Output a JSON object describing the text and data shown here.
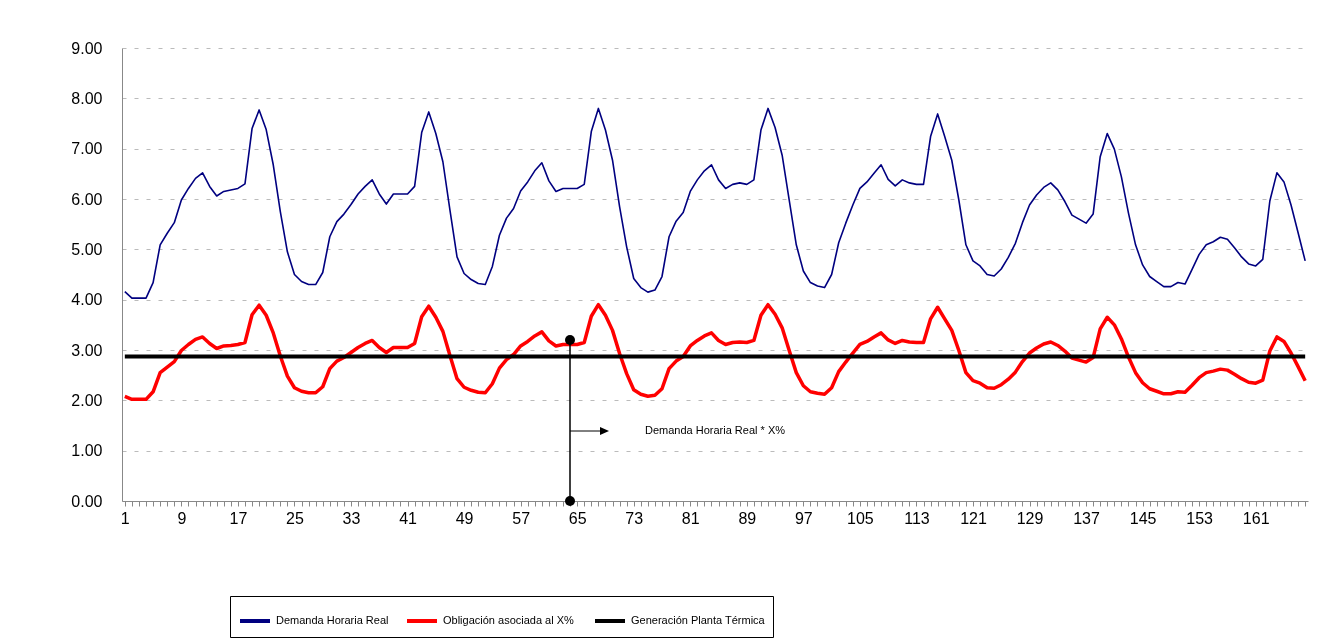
{
  "chart_data": {
    "type": "line",
    "categories": [
      "1",
      null,
      null,
      null,
      null,
      null,
      null,
      null,
      "9",
      null,
      null,
      null,
      null,
      null,
      null,
      null,
      "17",
      null,
      null,
      null,
      null,
      null,
      null,
      null,
      "25",
      null,
      null,
      null,
      null,
      null,
      null,
      null,
      "33",
      null,
      null,
      null,
      null,
      null,
      null,
      null,
      "41",
      null,
      null,
      null,
      null,
      null,
      null,
      null,
      "49",
      null,
      null,
      null,
      null,
      null,
      null,
      null,
      "57",
      null,
      null,
      null,
      null,
      null,
      null,
      null,
      "65",
      null,
      null,
      null,
      null,
      null,
      null,
      null,
      "73",
      null,
      null,
      null,
      null,
      null,
      null,
      null,
      "81",
      null,
      null,
      null,
      null,
      null,
      null,
      null,
      "89",
      null,
      null,
      null,
      null,
      null,
      null,
      null,
      "97",
      null,
      null,
      null,
      null,
      null,
      null,
      null,
      "105",
      null,
      null,
      null,
      null,
      null,
      null,
      null,
      "113",
      null,
      null,
      null,
      null,
      null,
      null,
      null,
      "121",
      null,
      null,
      null,
      null,
      null,
      null,
      null,
      "129",
      null,
      null,
      null,
      null,
      null,
      null,
      null,
      "137",
      null,
      null,
      null,
      null,
      null,
      null,
      null,
      "145",
      null,
      null,
      null,
      null,
      null,
      null,
      null,
      "153",
      null,
      null,
      null,
      null,
      null,
      null,
      null,
      "161",
      null,
      null,
      null,
      null,
      null,
      null,
      null
    ],
    "series": [
      {
        "name": "Demanda Horaria Real",
        "color": "#000080",
        "values": [
          4.16,
          4.03,
          4.03,
          4.03,
          4.34,
          5.09,
          5.32,
          5.53,
          5.98,
          6.21,
          6.41,
          6.52,
          6.25,
          6.06,
          6.15,
          6.18,
          6.21,
          6.3,
          7.4,
          7.77,
          7.38,
          6.68,
          5.75,
          4.95,
          4.5,
          4.36,
          4.3,
          4.3,
          4.54,
          5.25,
          5.55,
          5.7,
          5.89,
          6.1,
          6.25,
          6.38,
          6.1,
          5.9,
          6.1,
          6.1,
          6.1,
          6.25,
          7.32,
          7.73,
          7.3,
          6.74,
          5.78,
          4.85,
          4.52,
          4.4,
          4.32,
          4.3,
          4.66,
          5.28,
          5.62,
          5.81,
          6.16,
          6.34,
          6.56,
          6.72,
          6.36,
          6.15,
          6.21,
          6.21,
          6.21,
          6.29,
          7.34,
          7.8,
          7.37,
          6.77,
          5.85,
          5.05,
          4.42,
          4.24,
          4.15,
          4.19,
          4.46,
          5.25,
          5.56,
          5.73,
          6.15,
          6.38,
          6.56,
          6.68,
          6.38,
          6.21,
          6.29,
          6.32,
          6.29,
          6.38,
          7.37,
          7.8,
          7.42,
          6.87,
          5.98,
          5.09,
          4.57,
          4.34,
          4.27,
          4.24,
          4.5,
          5.13,
          5.52,
          5.88,
          6.21,
          6.34,
          6.51,
          6.68,
          6.39,
          6.26,
          6.38,
          6.32,
          6.29,
          6.29,
          7.24,
          7.69,
          7.24,
          6.77,
          5.98,
          5.09,
          4.77,
          4.67,
          4.5,
          4.47,
          4.61,
          4.84,
          5.12,
          5.53,
          5.88,
          6.08,
          6.23,
          6.32,
          6.18,
          5.95,
          5.68,
          5.6,
          5.52,
          5.7,
          6.84,
          7.3,
          6.99,
          6.44,
          5.72,
          5.09,
          4.69,
          4.46,
          4.36,
          4.26,
          4.26,
          4.34,
          4.31,
          4.6,
          4.9,
          5.09,
          5.15,
          5.24,
          5.2,
          5.03,
          4.85,
          4.71,
          4.67,
          4.8,
          5.96,
          6.52,
          6.34,
          5.88,
          5.33,
          4.77
        ]
      },
      {
        "name": "Obligación asociada al  X%",
        "color": "#ff0000",
        "values": [
          2.08,
          2.02,
          2.02,
          2.02,
          2.17,
          2.55,
          2.66,
          2.77,
          2.99,
          3.11,
          3.21,
          3.26,
          3.13,
          3.03,
          3.08,
          3.09,
          3.11,
          3.15,
          3.7,
          3.89,
          3.69,
          3.34,
          2.88,
          2.48,
          2.25,
          2.18,
          2.15,
          2.15,
          2.27,
          2.63,
          2.78,
          2.85,
          2.95,
          3.05,
          3.13,
          3.19,
          3.05,
          2.95,
          3.05,
          3.05,
          3.05,
          3.13,
          3.66,
          3.87,
          3.65,
          3.37,
          2.89,
          2.43,
          2.26,
          2.2,
          2.16,
          2.15,
          2.33,
          2.64,
          2.81,
          2.91,
          3.08,
          3.17,
          3.28,
          3.36,
          3.18,
          3.08,
          3.11,
          3.11,
          3.11,
          3.15,
          3.67,
          3.9,
          3.69,
          3.39,
          2.93,
          2.53,
          2.21,
          2.12,
          2.08,
          2.1,
          2.23,
          2.63,
          2.78,
          2.87,
          3.08,
          3.19,
          3.28,
          3.34,
          3.19,
          3.11,
          3.15,
          3.16,
          3.15,
          3.19,
          3.69,
          3.9,
          3.71,
          3.44,
          2.99,
          2.55,
          2.29,
          2.17,
          2.14,
          2.12,
          2.25,
          2.57,
          2.76,
          2.94,
          3.11,
          3.17,
          3.26,
          3.34,
          3.2,
          3.13,
          3.19,
          3.16,
          3.15,
          3.15,
          3.62,
          3.85,
          3.62,
          3.39,
          2.99,
          2.55,
          2.39,
          2.34,
          2.25,
          2.24,
          2.31,
          2.42,
          2.56,
          2.77,
          2.94,
          3.04,
          3.12,
          3.16,
          3.09,
          2.98,
          2.84,
          2.8,
          2.76,
          2.85,
          3.42,
          3.65,
          3.5,
          3.22,
          2.86,
          2.55,
          2.35,
          2.23,
          2.18,
          2.13,
          2.13,
          2.17,
          2.16,
          2.3,
          2.45,
          2.55,
          2.58,
          2.62,
          2.6,
          2.52,
          2.43,
          2.36,
          2.34,
          2.4,
          2.98,
          3.26,
          3.17,
          2.94,
          2.67,
          2.39
        ]
      },
      {
        "name": "Generación Planta Térmica",
        "color": "#000000",
        "values": [
          2.87,
          2.87,
          2.87,
          2.87,
          2.87,
          2.87,
          2.87,
          2.87,
          2.87,
          2.87,
          2.87,
          2.87,
          2.87,
          2.87,
          2.87,
          2.87,
          2.87,
          2.87,
          2.87,
          2.87,
          2.87,
          2.87,
          2.87,
          2.87,
          2.87,
          2.87,
          2.87,
          2.87,
          2.87,
          2.87,
          2.87,
          2.87,
          2.87,
          2.87,
          2.87,
          2.87,
          2.87,
          2.87,
          2.87,
          2.87,
          2.87,
          2.87,
          2.87,
          2.87,
          2.87,
          2.87,
          2.87,
          2.87,
          2.87,
          2.87,
          2.87,
          2.87,
          2.87,
          2.87,
          2.87,
          2.87,
          2.87,
          2.87,
          2.87,
          2.87,
          2.87,
          2.87,
          2.87,
          2.87,
          2.87,
          2.87,
          2.87,
          2.87,
          2.87,
          2.87,
          2.87,
          2.87,
          2.87,
          2.87,
          2.87,
          2.87,
          2.87,
          2.87,
          2.87,
          2.87,
          2.87,
          2.87,
          2.87,
          2.87,
          2.87,
          2.87,
          2.87,
          2.87,
          2.87,
          2.87,
          2.87,
          2.87,
          2.87,
          2.87,
          2.87,
          2.87,
          2.87,
          2.87,
          2.87,
          2.87,
          2.87,
          2.87,
          2.87,
          2.87,
          2.87,
          2.87,
          2.87,
          2.87,
          2.87,
          2.87,
          2.87,
          2.87,
          2.87,
          2.87,
          2.87,
          2.87,
          2.87,
          2.87,
          2.87,
          2.87,
          2.87,
          2.87,
          2.87,
          2.87,
          2.87,
          2.87,
          2.87,
          2.87,
          2.87,
          2.87,
          2.87,
          2.87,
          2.87,
          2.87,
          2.87,
          2.87,
          2.87,
          2.87,
          2.87,
          2.87,
          2.87,
          2.87,
          2.87,
          2.87,
          2.87,
          2.87,
          2.87,
          2.87,
          2.87,
          2.87,
          2.87,
          2.87,
          2.87,
          2.87,
          2.87,
          2.87,
          2.87,
          2.87,
          2.87,
          2.87,
          2.87,
          2.87,
          2.87,
          2.87,
          2.87,
          2.87,
          2.87,
          2.87
        ]
      }
    ],
    "ylim": [
      0,
      9
    ],
    "yticks": [
      {
        "value": 0,
        "label": "0.00"
      },
      {
        "value": 1,
        "label": "1.00"
      },
      {
        "value": 2,
        "label": "2.00"
      },
      {
        "value": 3,
        "label": "3.00"
      },
      {
        "value": 4,
        "label": "4.00"
      },
      {
        "value": 5,
        "label": "5.00"
      },
      {
        "value": 6,
        "label": "6.00"
      },
      {
        "value": 7,
        "label": "7.00"
      },
      {
        "value": 8,
        "label": "8.00"
      },
      {
        "value": 9,
        "label": "9.00"
      }
    ],
    "grid": "y",
    "legend": "bottom",
    "marker": "none",
    "line_style": "solid",
    "annotations": [
      "Demanda Horaria Real * X%"
    ]
  }
}
